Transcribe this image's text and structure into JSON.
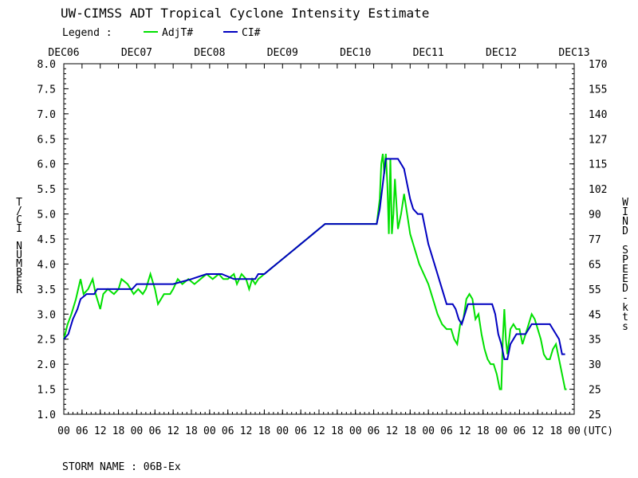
{
  "chart_data": {
    "type": "line",
    "title": "UW-CIMSS ADT Tropical Cyclone Intensity Estimate",
    "legend_label": "Legend :",
    "legend_placement": "top-left",
    "series": [
      {
        "name": "AdjT#",
        "color": "#00e000",
        "points": [
          [
            0.0,
            2.5
          ],
          [
            2.5,
            2.8
          ],
          [
            5,
            3.0
          ],
          [
            8,
            3.3
          ],
          [
            11,
            3.7
          ],
          [
            13,
            3.4
          ],
          [
            16,
            3.5
          ],
          [
            19,
            3.7
          ],
          [
            21,
            3.4
          ],
          [
            24,
            3.1
          ],
          [
            26,
            3.4
          ],
          [
            29,
            3.5
          ],
          [
            33,
            3.4
          ],
          [
            36,
            3.5
          ],
          [
            38,
            3.7
          ],
          [
            42,
            3.6
          ],
          [
            46,
            3.4
          ],
          [
            49,
            3.5
          ],
          [
            52,
            3.4
          ],
          [
            54,
            3.5
          ],
          [
            57,
            3.8
          ],
          [
            60,
            3.5
          ],
          [
            62,
            3.2
          ],
          [
            66,
            3.4
          ],
          [
            70,
            3.4
          ],
          [
            72,
            3.5
          ],
          [
            75,
            3.7
          ],
          [
            78,
            3.6
          ],
          [
            82,
            3.7
          ],
          [
            86,
            3.6
          ],
          [
            90,
            3.7
          ],
          [
            94,
            3.8
          ],
          [
            98,
            3.7
          ],
          [
            102,
            3.8
          ],
          [
            105,
            3.7
          ],
          [
            108,
            3.7
          ],
          [
            112,
            3.8
          ],
          [
            114,
            3.6
          ],
          [
            117,
            3.8
          ],
          [
            120,
            3.7
          ],
          [
            122,
            3.5
          ],
          [
            124,
            3.7
          ],
          [
            126,
            3.6
          ],
          [
            128,
            3.7
          ],
          [
            132,
            3.8
          ],
          [
            136,
            3.9
          ],
          [
            140,
            4.0
          ],
          [
            144,
            4.1
          ],
          [
            148,
            4.2
          ],
          [
            152,
            4.3
          ],
          [
            156,
            4.4
          ],
          [
            160,
            4.5
          ],
          [
            164,
            4.6
          ],
          [
            168,
            4.7
          ],
          [
            172,
            4.8
          ],
          [
            176,
            4.8
          ],
          [
            184,
            4.8
          ],
          [
            194,
            4.8
          ],
          [
            206,
            4.8
          ],
          [
            208,
            5.3
          ],
          [
            209,
            6.0
          ],
          [
            210,
            6.2
          ],
          [
            211,
            5.8
          ],
          [
            212,
            6.2
          ],
          [
            213,
            5.6
          ],
          [
            214,
            4.6
          ],
          [
            215,
            6.1
          ],
          [
            216,
            4.6
          ],
          [
            217,
            5.0
          ],
          [
            218,
            5.7
          ],
          [
            219,
            5.2
          ],
          [
            220,
            4.7
          ],
          [
            222,
            5.0
          ],
          [
            224,
            5.4
          ],
          [
            226,
            5.0
          ],
          [
            228,
            4.6
          ],
          [
            231,
            4.3
          ],
          [
            234,
            4.0
          ],
          [
            237,
            3.8
          ],
          [
            240,
            3.6
          ],
          [
            243,
            3.3
          ],
          [
            246,
            3.0
          ],
          [
            249,
            2.8
          ],
          [
            252,
            2.7
          ],
          [
            255,
            2.7
          ],
          [
            257,
            2.5
          ],
          [
            259,
            2.4
          ],
          [
            261,
            2.8
          ],
          [
            263,
            2.9
          ],
          [
            265,
            3.3
          ],
          [
            267,
            3.4
          ],
          [
            269,
            3.3
          ],
          [
            271,
            2.9
          ],
          [
            273,
            3.0
          ],
          [
            275,
            2.6
          ],
          [
            277,
            2.3
          ],
          [
            279,
            2.1
          ],
          [
            281,
            2.0
          ],
          [
            283,
            2.0
          ],
          [
            285,
            1.8
          ],
          [
            287,
            1.5
          ],
          [
            288,
            1.5
          ],
          [
            289,
            2.5
          ],
          [
            290,
            3.1
          ],
          [
            291,
            2.5
          ],
          [
            292,
            2.2
          ],
          [
            294,
            2.7
          ],
          [
            296,
            2.8
          ],
          [
            298,
            2.7
          ],
          [
            300,
            2.7
          ],
          [
            302,
            2.4
          ],
          [
            304,
            2.6
          ],
          [
            306,
            2.8
          ],
          [
            308,
            3.0
          ],
          [
            310,
            2.9
          ],
          [
            312,
            2.7
          ],
          [
            314,
            2.5
          ],
          [
            316,
            2.2
          ],
          [
            318,
            2.1
          ],
          [
            320,
            2.1
          ],
          [
            322,
            2.3
          ],
          [
            324,
            2.4
          ],
          [
            326,
            2.1
          ],
          [
            328,
            1.8
          ],
          [
            330,
            1.5
          ],
          [
            331,
            1.5
          ]
        ]
      },
      {
        "name": "CI#",
        "color": "#0000c0",
        "points": [
          [
            0.0,
            2.5
          ],
          [
            3,
            2.6
          ],
          [
            6,
            2.9
          ],
          [
            9,
            3.1
          ],
          [
            11,
            3.3
          ],
          [
            15,
            3.4
          ],
          [
            20,
            3.4
          ],
          [
            22,
            3.5
          ],
          [
            30,
            3.5
          ],
          [
            45,
            3.5
          ],
          [
            48,
            3.6
          ],
          [
            56,
            3.6
          ],
          [
            66,
            3.6
          ],
          [
            72,
            3.6
          ],
          [
            84,
            3.7
          ],
          [
            94,
            3.8
          ],
          [
            104,
            3.8
          ],
          [
            112,
            3.7
          ],
          [
            126,
            3.7
          ],
          [
            128,
            3.8
          ],
          [
            132,
            3.8
          ],
          [
            136,
            3.9
          ],
          [
            140,
            4.0
          ],
          [
            144,
            4.1
          ],
          [
            148,
            4.2
          ],
          [
            152,
            4.3
          ],
          [
            156,
            4.4
          ],
          [
            160,
            4.5
          ],
          [
            164,
            4.6
          ],
          [
            168,
            4.7
          ],
          [
            172,
            4.8
          ],
          [
            176,
            4.8
          ],
          [
            184,
            4.8
          ],
          [
            194,
            4.8
          ],
          [
            206,
            4.8
          ],
          [
            208,
            5.1
          ],
          [
            210,
            5.6
          ],
          [
            212,
            6.1
          ],
          [
            214,
            6.1
          ],
          [
            220,
            6.1
          ],
          [
            222,
            6.0
          ],
          [
            224,
            5.9
          ],
          [
            226,
            5.6
          ],
          [
            228,
            5.3
          ],
          [
            230,
            5.1
          ],
          [
            233,
            5.0
          ],
          [
            236,
            5.0
          ],
          [
            238,
            4.7
          ],
          [
            240,
            4.4
          ],
          [
            242,
            4.2
          ],
          [
            244,
            4.0
          ],
          [
            246,
            3.8
          ],
          [
            248,
            3.6
          ],
          [
            250,
            3.4
          ],
          [
            252,
            3.2
          ],
          [
            256,
            3.2
          ],
          [
            258,
            3.1
          ],
          [
            260,
            2.9
          ],
          [
            262,
            2.8
          ],
          [
            264,
            3.0
          ],
          [
            266,
            3.2
          ],
          [
            276,
            3.2
          ],
          [
            282,
            3.2
          ],
          [
            284,
            3.0
          ],
          [
            286,
            2.6
          ],
          [
            288,
            2.4
          ],
          [
            290,
            2.1
          ],
          [
            292,
            2.1
          ],
          [
            294,
            2.4
          ],
          [
            296,
            2.5
          ],
          [
            298,
            2.6
          ],
          [
            304,
            2.6
          ],
          [
            306,
            2.7
          ],
          [
            308,
            2.8
          ],
          [
            318,
            2.8
          ],
          [
            320,
            2.8
          ],
          [
            324,
            2.6
          ],
          [
            326,
            2.5
          ],
          [
            328,
            2.2
          ],
          [
            330,
            2.2
          ]
        ]
      }
    ],
    "x_axis": {
      "range_hours": [
        0,
        336
      ],
      "unit_label": "(UTC)",
      "top_labels": [
        "DEC06",
        "DEC07",
        "DEC08",
        "DEC09",
        "DEC10",
        "DEC11",
        "DEC12",
        "DEC13"
      ],
      "bottom_ticks": [
        "00",
        "06",
        "12",
        "18",
        "00",
        "06",
        "12",
        "18",
        "00",
        "06",
        "12",
        "18",
        "00",
        "06",
        "12",
        "18",
        "00",
        "06",
        "12",
        "18",
        "00",
        "06",
        "12",
        "18",
        "00",
        "06",
        "12",
        "18",
        "00"
      ]
    },
    "y_left": {
      "label": "T/CI NUMBER",
      "range": [
        1.0,
        8.0
      ],
      "ticks": [
        "8.0",
        "7.5",
        "7.0",
        "6.5",
        "6.0",
        "5.5",
        "5.0",
        "4.5",
        "4.0",
        "3.5",
        "3.0",
        "2.5",
        "2.0",
        "1.5",
        "1.0"
      ]
    },
    "y_right": {
      "label": "WIND SPEED-kts",
      "ticks": [
        "170",
        "155",
        "140",
        "127",
        "115",
        "102",
        "90",
        "77",
        "65",
        "55",
        "45",
        "35",
        "30",
        "25",
        "25"
      ]
    },
    "grid": false
  },
  "footer": {
    "storm_name": "STORM NAME : 06B-Ex"
  }
}
